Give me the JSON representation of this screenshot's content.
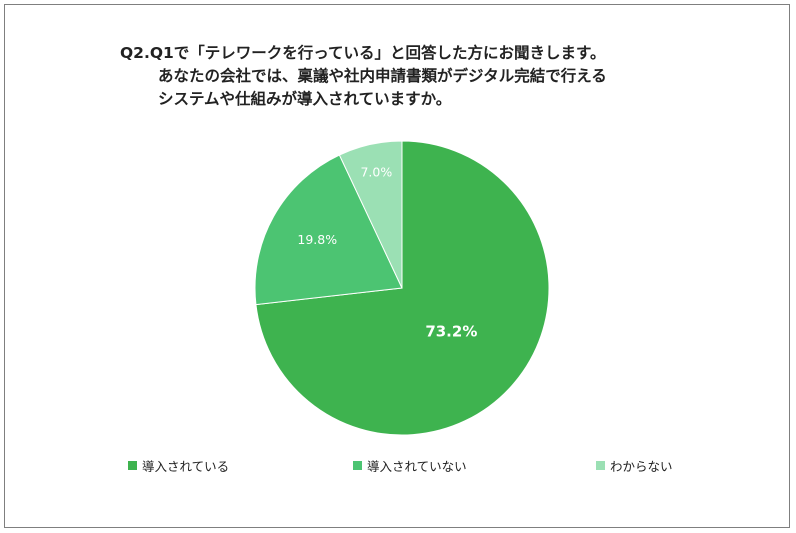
{
  "title": {
    "line1": "Q2.Q1で「テレワークを行っている」と回答した方にお聞きします。",
    "line2": "あなたの会社では、稟議や社内申請書類がデジタル完結で行える",
    "line3": "システムや仕組みが導入されていますか。"
  },
  "chart_data": {
    "type": "pie",
    "slices": [
      {
        "label": "導入されている",
        "value": 73.2,
        "value_label": "73.2%",
        "color": "#3eb34f"
      },
      {
        "label": "導入されていない",
        "value": 19.8,
        "value_label": "19.8%",
        "color": "#4cc472"
      },
      {
        "label": "わからない",
        "value": 7.0,
        "value_label": "7.0%",
        "color": "#9be0b4"
      }
    ],
    "start": "12 o'clock",
    "direction": "clockwise",
    "legend_position": "bottom"
  },
  "legend": {
    "items": [
      {
        "label": "導入されている",
        "color": "#3eb34f"
      },
      {
        "label": "導入されていない",
        "color": "#4cc472"
      },
      {
        "label": "わからない",
        "color": "#9be0b4"
      }
    ]
  }
}
